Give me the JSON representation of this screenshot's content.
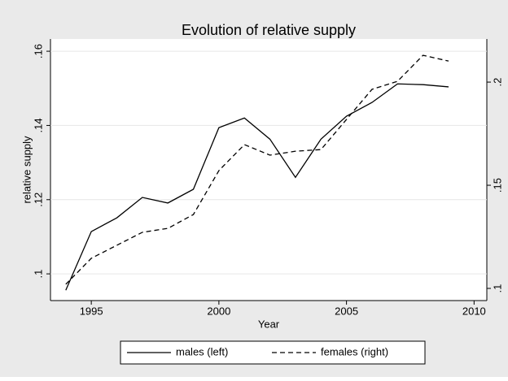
{
  "chart_data": {
    "type": "line",
    "title": "Evolution of relative supply",
    "x_label": "Year",
    "y_label": "relative supply",
    "x": [
      1994,
      1995,
      1996,
      1997,
      1998,
      1999,
      2000,
      2001,
      2002,
      2003,
      2004,
      2005,
      2006,
      2007,
      2008,
      2009
    ],
    "series": [
      {
        "name": "males (left)",
        "color": "#000000",
        "style": "solid",
        "axis": "y",
        "values": [
          0.0956,
          0.1114,
          0.1151,
          0.1206,
          0.1191,
          0.1228,
          0.1394,
          0.142,
          0.1363,
          0.126,
          0.1363,
          0.1425,
          0.1462,
          0.1512,
          0.151,
          0.1504
        ]
      },
      {
        "name": "females (right)",
        "color": "#000000",
        "style": "dashed",
        "axis": "y2",
        "values": [
          0.102,
          0.1146,
          0.1209,
          0.1272,
          0.1291,
          0.1358,
          0.1571,
          0.1697,
          0.1646,
          0.1665,
          0.1673,
          0.1819,
          0.1965,
          0.2004,
          0.213,
          0.2102
        ]
      }
    ],
    "xlim": [
      1993.4,
      2010.5
    ],
    "xticks": [
      1995,
      2000,
      2005,
      2010
    ],
    "ylim": [
      0.0928,
      0.1633
    ],
    "yticks": [
      {
        "value": 0.1,
        "label": ".1"
      },
      {
        "value": 0.12,
        "label": ".12"
      },
      {
        "value": 0.14,
        "label": ".14"
      },
      {
        "value": 0.16,
        "label": ".16"
      }
    ],
    "y2lim": [
      0.0941,
      0.2209
    ],
    "y2ticks": [
      {
        "value": 0.1,
        "label": ".1"
      },
      {
        "value": 0.15,
        "label": ".15"
      },
      {
        "value": 0.2,
        "label": ".2"
      }
    ],
    "grid": true,
    "legend": "bottom"
  }
}
